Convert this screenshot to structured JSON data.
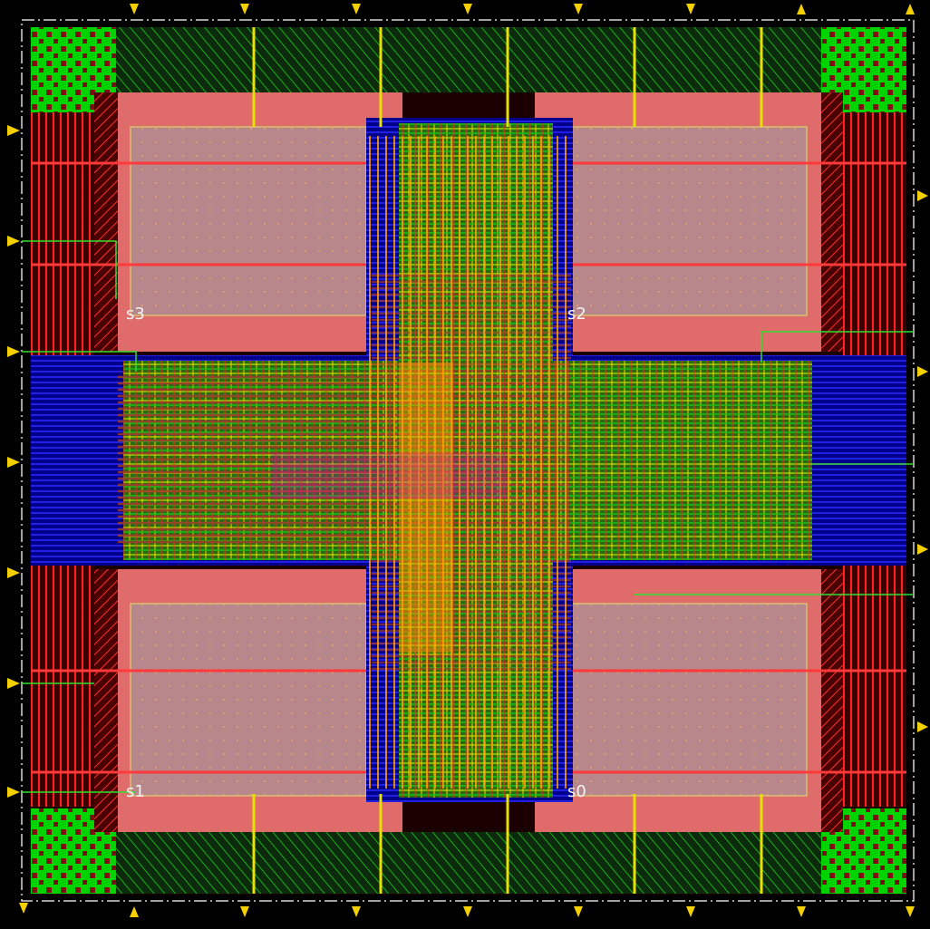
{
  "view": {
    "background_color": "#000000",
    "die_outline_color": "#d8d8d8",
    "pin_color": "#f5d000"
  },
  "labels": {
    "s3": "s3",
    "s2": "s2",
    "s1": "s1",
    "s0": "s0"
  },
  "colors": {
    "fill_green": "#00cc00",
    "metal_red": "#ff2a2a",
    "dark_red": "#5a0000",
    "pink": "#e06b6b",
    "pale_block": "#b5868a",
    "blue": "#1010ff",
    "magenta": "#cc00cc",
    "orange": "#ff9a00",
    "yellow_green": "#c8e000",
    "brown": "#a23a2a"
  }
}
